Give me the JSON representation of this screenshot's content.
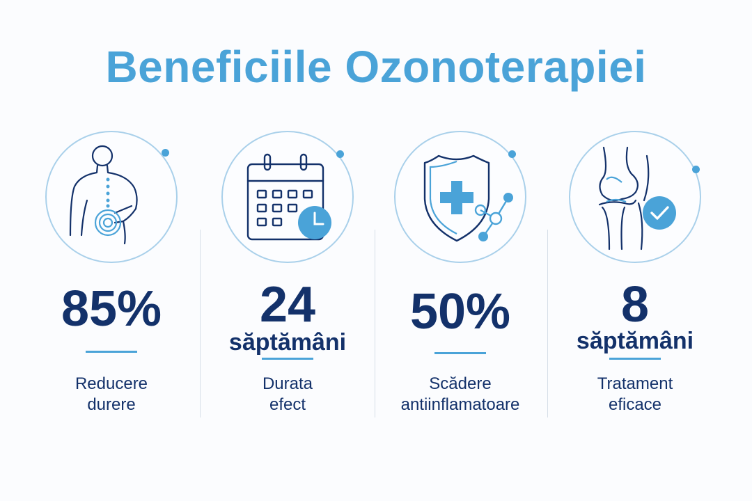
{
  "title": "Beneficiile Ozonoterapiei",
  "colors": {
    "accent": "#4aa3d8",
    "navy": "#13316a",
    "circle": "#a9d0ea"
  },
  "cards": [
    {
      "icon": "back-pain-icon",
      "value": "85%",
      "unit": "",
      "label_line1": "Reducere",
      "label_line2": "durere"
    },
    {
      "icon": "calendar-clock-icon",
      "value": "24",
      "unit": "săptămâni",
      "label_line1": "Durata",
      "label_line2": "efect"
    },
    {
      "icon": "shield-medical-icon",
      "value": "50%",
      "unit": "",
      "label_line1": "Scădere",
      "label_line2": "antiinflamatoare"
    },
    {
      "icon": "knee-joint-check-icon",
      "value": "8",
      "unit": "săptămâni",
      "label_line1": "Tratament",
      "label_line2": "eficace"
    }
  ]
}
